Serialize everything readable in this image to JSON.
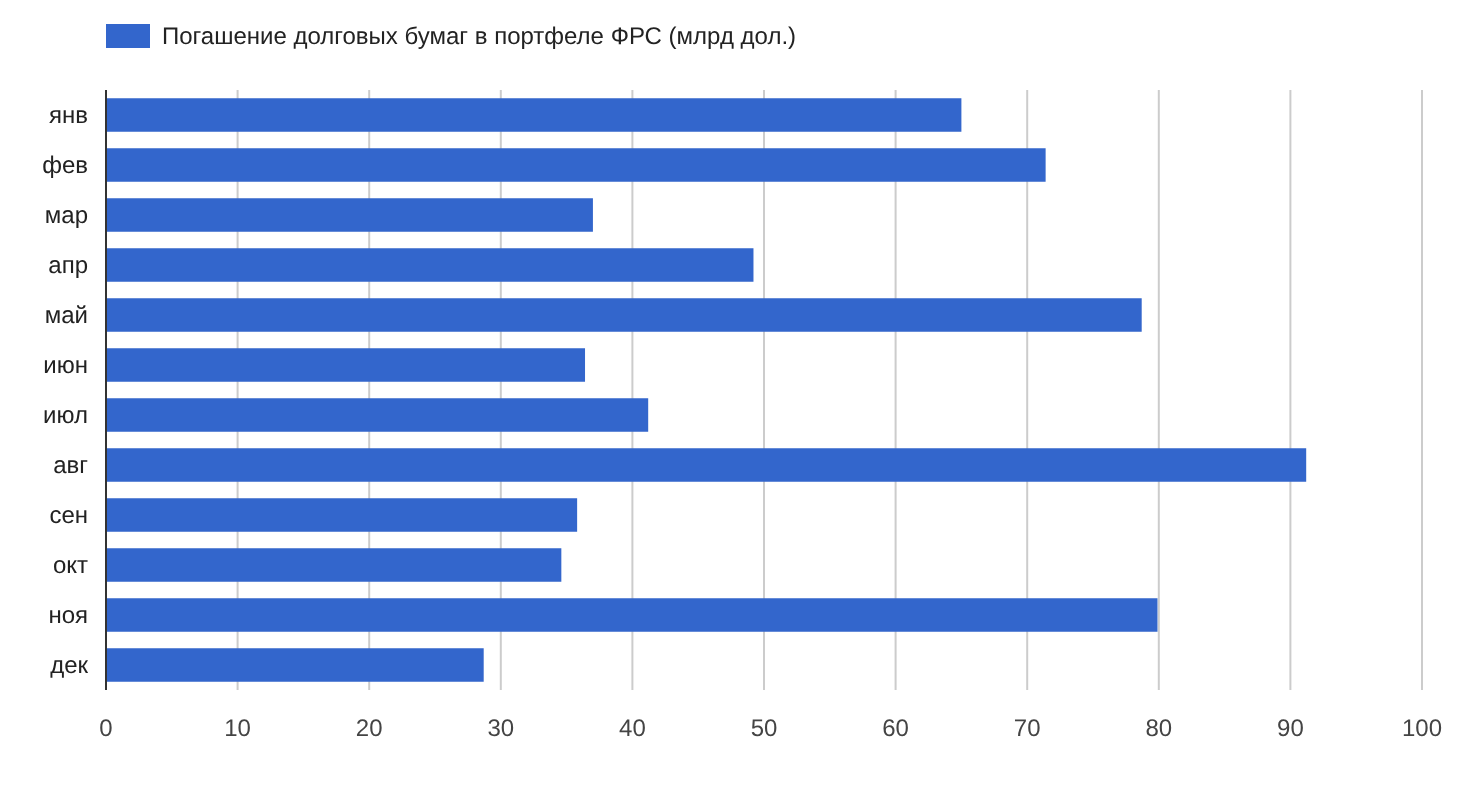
{
  "chart_data": {
    "type": "bar",
    "orientation": "horizontal",
    "categories": [
      "янв",
      "фев",
      "мар",
      "апр",
      "май",
      "июн",
      "июл",
      "авг",
      "сен",
      "окт",
      "ноя",
      "дек"
    ],
    "series": [
      {
        "name": "Погашение долговых бумаг в портфеле ФРС (млрд дол.)",
        "color": "#3366cc",
        "values": [
          65.0,
          71.4,
          37.0,
          49.2,
          78.7,
          36.4,
          41.2,
          91.2,
          35.8,
          34.6,
          79.9,
          28.7
        ]
      }
    ],
    "xlim": [
      0,
      100
    ],
    "xticks": [
      0,
      10,
      20,
      30,
      40,
      50,
      60,
      70,
      80,
      90,
      100
    ],
    "grid": "x",
    "legend": "top left"
  }
}
